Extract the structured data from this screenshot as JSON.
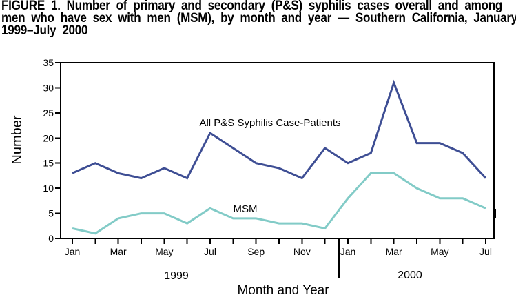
{
  "title_lines": [
    "FIGURE 1. Number of primary and secondary (P&S) syphilis cases overall and among",
    "men who have sex with men (MSM), by month and year — Southern California, January",
    "1999–July 2000"
  ],
  "chart_data": {
    "type": "line",
    "categories": [
      "Jan 1999",
      "Feb 1999",
      "Mar 1999",
      "Apr 1999",
      "May 1999",
      "Jun 1999",
      "Jul 1999",
      "Aug 1999",
      "Sep 1999",
      "Oct 1999",
      "Nov 1999",
      "Dec 1999",
      "Jan 2000",
      "Feb 2000",
      "Mar 2000",
      "Apr 2000",
      "May 2000",
      "Jun 2000",
      "Jul 2000"
    ],
    "xtick_labels": [
      "Jan",
      "",
      "Mar",
      "",
      "May",
      "",
      "Jul",
      "",
      "Sep",
      "",
      "Nov",
      "",
      "Jan",
      "",
      "Mar",
      "",
      "May",
      "",
      "Jul"
    ],
    "year_labels": [
      "1999",
      "2000"
    ],
    "series": [
      {
        "name": "All P&S Syphilis Case-Patients",
        "color": "#3e4e94",
        "values": [
          13,
          15,
          13,
          12,
          14,
          12,
          21,
          18,
          15,
          14,
          12,
          18,
          15,
          17,
          31,
          19,
          19,
          17,
          12
        ]
      },
      {
        "name": "MSM",
        "color": "#82cbc7",
        "values": [
          2,
          1,
          4,
          5,
          5,
          3,
          6,
          4,
          4,
          3,
          3,
          2,
          8,
          13,
          13,
          10,
          8,
          8,
          6
        ]
      }
    ],
    "ylabel": "Number",
    "xlabel": "Month and Year",
    "ylim": [
      0,
      35
    ],
    "ytick_step": 5,
    "grid": false,
    "legend_position": "inline-labels"
  }
}
